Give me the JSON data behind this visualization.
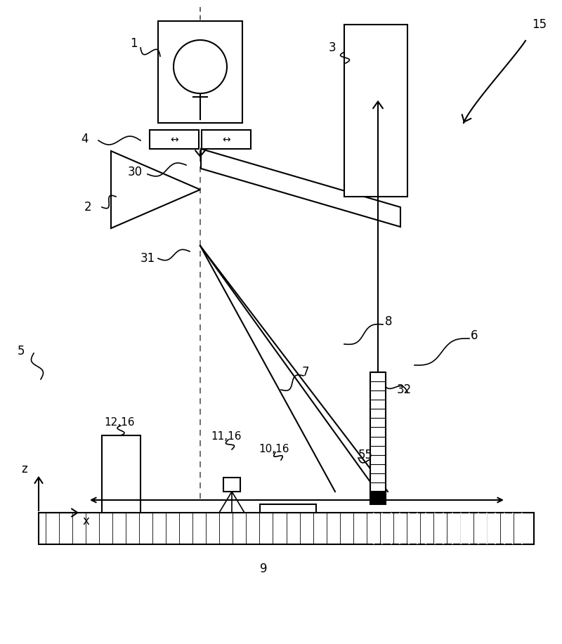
{
  "bg_color": "#ffffff",
  "line_color": "#000000",
  "fig_width": 8.0,
  "fig_height": 9.17
}
